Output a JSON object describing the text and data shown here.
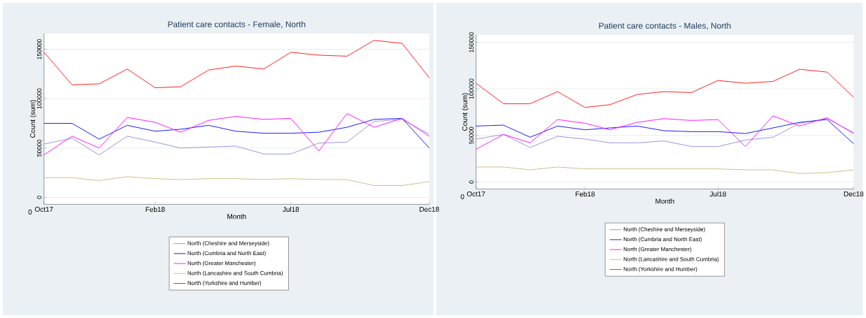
{
  "chart_data": [
    {
      "type": "line",
      "title": "Patient care contacts - Female, North",
      "xlabel": "Month",
      "ylabel": "Count (sum)",
      "x": [
        "2017-10",
        "2017-11",
        "2017-12",
        "2018-01",
        "2018-02",
        "2018-03",
        "2018-04",
        "2018-05",
        "2018-06",
        "2018-07",
        "2018-08",
        "2018-09",
        "2018-10",
        "2018-11",
        "2018-12"
      ],
      "xlim": [
        "2017-10",
        "2018-12"
      ],
      "xticks": [
        {
          "value": "2017-10",
          "label": "Oct17"
        },
        {
          "value": "2018-02",
          "label": "Feb18"
        },
        {
          "value": "2018-07",
          "label": "Jul18"
        },
        {
          "value": "2018-12",
          "label": "Dec18"
        }
      ],
      "ylim": [
        -7000,
        166000
      ],
      "yticks": [
        0,
        50000,
        100000,
        150000
      ],
      "grid": "y",
      "legend": "bottom",
      "annotations": [
        "0"
      ],
      "series": [
        {
          "name": "North (Cheshire and Merseyside)",
          "color": "#9b94d8",
          "values": [
            54000,
            60000,
            43000,
            62000,
            56000,
            50000,
            51000,
            52000,
            44000,
            44000,
            55000,
            56000,
            77000,
            79000,
            64000
          ]
        },
        {
          "name": "North (Cumbria and North East)",
          "color": "#1a1aff",
          "values": [
            75000,
            75000,
            59000,
            73000,
            67000,
            69000,
            73000,
            67000,
            65000,
            65000,
            66000,
            71000,
            79000,
            80000,
            50000
          ]
        },
        {
          "name": "North (Greater Manchester)",
          "color": "#ff1aff",
          "values": [
            43000,
            62000,
            50000,
            81000,
            76000,
            66000,
            78000,
            82000,
            79000,
            80000,
            47000,
            85000,
            71000,
            80000,
            62000
          ]
        },
        {
          "name": "North (Lancashire and South Cumbria)",
          "color": "#cdc08a",
          "values": [
            20000,
            20000,
            17000,
            21000,
            19000,
            18000,
            19000,
            19000,
            18000,
            19000,
            18000,
            18000,
            12000,
            12000,
            16000
          ]
        },
        {
          "name": "North (Yorkshire and Humber)",
          "color": "#ff2020",
          "values": [
            147000,
            114000,
            115000,
            130000,
            111000,
            112000,
            129000,
            133000,
            130000,
            147000,
            144000,
            143000,
            159000,
            156000,
            121000
          ]
        }
      ]
    },
    {
      "type": "line",
      "title": "Patient care contacts - Males, North",
      "xlabel": "Month",
      "ylabel": "Count (sum)",
      "x": [
        "2017-10",
        "2017-11",
        "2017-12",
        "2018-01",
        "2018-02",
        "2018-03",
        "2018-04",
        "2018-05",
        "2018-06",
        "2018-07",
        "2018-08",
        "2018-09",
        "2018-10",
        "2018-11",
        "2018-12"
      ],
      "xlim": [
        "2017-10",
        "2018-12"
      ],
      "xticks": [
        {
          "value": "2017-10",
          "label": "Oct17"
        },
        {
          "value": "2018-02",
          "label": "Feb18"
        },
        {
          "value": "2018-07",
          "label": "Jul18"
        },
        {
          "value": "2018-12",
          "label": "Dec18"
        }
      ],
      "ylim": [
        -7600,
        158000
      ],
      "yticks": [
        0,
        50000,
        100000,
        150000
      ],
      "grid": "y",
      "legend": "bottom",
      "annotations": [
        "0"
      ],
      "series": [
        {
          "name": "North (Cheshire and Merseyside)",
          "color": "#9b94d8",
          "values": [
            46000,
            51000,
            37000,
            49000,
            46000,
            42000,
            42000,
            44000,
            38000,
            38000,
            45000,
            48000,
            63000,
            68000,
            53000
          ]
        },
        {
          "name": "North (Cumbria and North East)",
          "color": "#1a1aff",
          "values": [
            60000,
            61000,
            48000,
            60000,
            56000,
            58000,
            60000,
            55000,
            54000,
            54000,
            52000,
            58000,
            64000,
            67000,
            41000
          ]
        },
        {
          "name": "North (Greater Manchester)",
          "color": "#ff1aff",
          "values": [
            35000,
            51000,
            42000,
            67000,
            63000,
            56000,
            64000,
            68000,
            66000,
            67000,
            38000,
            71000,
            60000,
            69000,
            52000
          ]
        },
        {
          "name": "North (Lancashire and South Cumbria)",
          "color": "#cdc08a",
          "values": [
            16000,
            16000,
            13000,
            16000,
            14000,
            14000,
            14000,
            14000,
            14000,
            14000,
            13000,
            13000,
            9000,
            10000,
            13000
          ]
        },
        {
          "name": "North (Yorkshire and Humber)",
          "color": "#ff2020",
          "values": [
            106000,
            84000,
            84000,
            97000,
            80000,
            83000,
            94000,
            97000,
            96000,
            109000,
            106000,
            108000,
            121000,
            118000,
            91000
          ]
        }
      ]
    }
  ]
}
